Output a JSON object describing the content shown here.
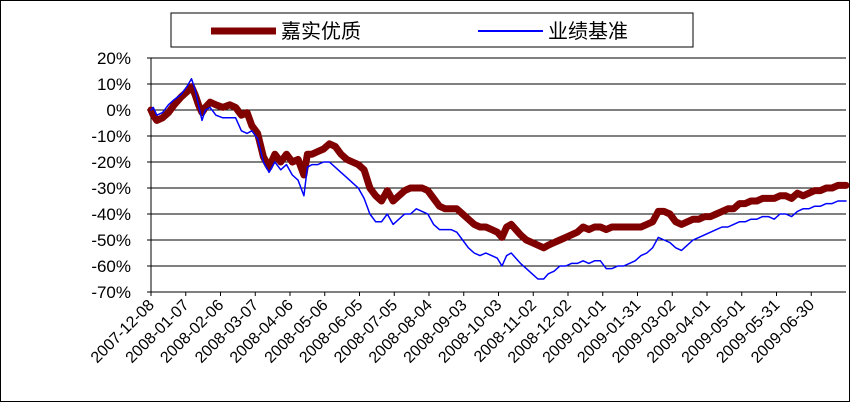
{
  "chart_data": {
    "type": "line",
    "title": "",
    "xlabel": "",
    "ylabel": "",
    "ylim": [
      -70,
      20
    ],
    "y_tick_labels": [
      "20%",
      "10%",
      "0%",
      "-10%",
      "-20%",
      "-30%",
      "-40%",
      "-50%",
      "-60%",
      "-70%"
    ],
    "x_tick_labels": [
      "2007-12-08",
      "2008-01-07",
      "2008-02-06",
      "2008-03-07",
      "2008-04-06",
      "2008-05-06",
      "2008-06-05",
      "2008-07-05",
      "2008-08-04",
      "2008-09-03",
      "2008-10-03",
      "2008-11-02",
      "2008-12-02",
      "2009-01-01",
      "2009-01-31",
      "2009-03-02",
      "2009-04-01",
      "2009-05-01",
      "2009-05-31",
      "2009-06-30"
    ],
    "x_range": [
      "2007-12-08",
      "2009-07-30"
    ],
    "grid": "horizontal",
    "legend_position": "top",
    "series": [
      {
        "name": "嘉实优质",
        "color": "#800000",
        "points": [
          [
            "2007-12-08",
            0
          ],
          [
            "2007-12-10",
            -2
          ],
          [
            "2007-12-13",
            -4
          ],
          [
            "2007-12-18",
            -3
          ],
          [
            "2007-12-23",
            -1
          ],
          [
            "2007-12-28",
            2
          ],
          [
            "2008-01-03",
            5
          ],
          [
            "2008-01-08",
            7
          ],
          [
            "2008-01-12",
            9
          ],
          [
            "2008-01-15",
            6
          ],
          [
            "2008-01-18",
            2
          ],
          [
            "2008-01-21",
            -1
          ],
          [
            "2008-01-24",
            1
          ],
          [
            "2008-01-28",
            3
          ],
          [
            "2008-02-02",
            2
          ],
          [
            "2008-02-08",
            1
          ],
          [
            "2008-02-14",
            2
          ],
          [
            "2008-02-19",
            1
          ],
          [
            "2008-02-24",
            -2
          ],
          [
            "2008-02-29",
            -1
          ],
          [
            "2008-03-04",
            -6
          ],
          [
            "2008-03-09",
            -9
          ],
          [
            "2008-03-14",
            -18
          ],
          [
            "2008-03-19",
            -22
          ],
          [
            "2008-03-24",
            -17
          ],
          [
            "2008-03-29",
            -20
          ],
          [
            "2008-04-03",
            -17
          ],
          [
            "2008-04-08",
            -20
          ],
          [
            "2008-04-13",
            -19
          ],
          [
            "2008-04-18",
            -25
          ],
          [
            "2008-04-21",
            -17
          ],
          [
            "2008-04-25",
            -17
          ],
          [
            "2008-04-30",
            -16
          ],
          [
            "2008-05-05",
            -15
          ],
          [
            "2008-05-10",
            -13
          ],
          [
            "2008-05-15",
            -14
          ],
          [
            "2008-05-20",
            -17
          ],
          [
            "2008-05-25",
            -19
          ],
          [
            "2008-05-30",
            -20
          ],
          [
            "2008-06-04",
            -21
          ],
          [
            "2008-06-09",
            -23
          ],
          [
            "2008-06-14",
            -30
          ],
          [
            "2008-06-19",
            -33
          ],
          [
            "2008-06-24",
            -35
          ],
          [
            "2008-06-29",
            -31
          ],
          [
            "2008-07-04",
            -35
          ],
          [
            "2008-07-09",
            -33
          ],
          [
            "2008-07-14",
            -31
          ],
          [
            "2008-07-19",
            -30
          ],
          [
            "2008-07-24",
            -30
          ],
          [
            "2008-07-29",
            -30
          ],
          [
            "2008-08-03",
            -31
          ],
          [
            "2008-08-08",
            -34
          ],
          [
            "2008-08-13",
            -37
          ],
          [
            "2008-08-18",
            -38
          ],
          [
            "2008-08-23",
            -38
          ],
          [
            "2008-08-28",
            -38
          ],
          [
            "2008-09-02",
            -40
          ],
          [
            "2008-09-07",
            -42
          ],
          [
            "2008-09-12",
            -44
          ],
          [
            "2008-09-17",
            -45
          ],
          [
            "2008-09-22",
            -45
          ],
          [
            "2008-09-27",
            -46
          ],
          [
            "2008-10-02",
            -47
          ],
          [
            "2008-10-06",
            -49
          ],
          [
            "2008-10-10",
            -45
          ],
          [
            "2008-10-14",
            -44
          ],
          [
            "2008-10-18",
            -46
          ],
          [
            "2008-10-22",
            -48
          ],
          [
            "2008-10-27",
            -50
          ],
          [
            "2008-11-01",
            -51
          ],
          [
            "2008-11-06",
            -52
          ],
          [
            "2008-11-11",
            -53
          ],
          [
            "2008-11-15",
            -52
          ],
          [
            "2008-11-20",
            -51
          ],
          [
            "2008-11-25",
            -50
          ],
          [
            "2008-11-30",
            -49
          ],
          [
            "2008-12-05",
            -48
          ],
          [
            "2008-12-10",
            -47
          ],
          [
            "2008-12-15",
            -45
          ],
          [
            "2008-12-20",
            -46
          ],
          [
            "2008-12-25",
            -45
          ],
          [
            "2008-12-30",
            -45
          ],
          [
            "2009-01-04",
            -46
          ],
          [
            "2009-01-09",
            -45
          ],
          [
            "2009-01-14",
            -45
          ],
          [
            "2009-01-19",
            -45
          ],
          [
            "2009-01-24",
            -45
          ],
          [
            "2009-01-29",
            -45
          ],
          [
            "2009-02-03",
            -45
          ],
          [
            "2009-02-08",
            -44
          ],
          [
            "2009-02-13",
            -43
          ],
          [
            "2009-02-18",
            -39
          ],
          [
            "2009-02-23",
            -39
          ],
          [
            "2009-02-28",
            -40
          ],
          [
            "2009-03-05",
            -43
          ],
          [
            "2009-03-10",
            -44
          ],
          [
            "2009-03-15",
            -43
          ],
          [
            "2009-03-20",
            -42
          ],
          [
            "2009-03-25",
            -42
          ],
          [
            "2009-03-30",
            -41
          ],
          [
            "2009-04-04",
            -41
          ],
          [
            "2009-04-09",
            -40
          ],
          [
            "2009-04-14",
            -39
          ],
          [
            "2009-04-19",
            -38
          ],
          [
            "2009-04-24",
            -38
          ],
          [
            "2009-04-29",
            -36
          ],
          [
            "2009-05-04",
            -36
          ],
          [
            "2009-05-09",
            -35
          ],
          [
            "2009-05-14",
            -35
          ],
          [
            "2009-05-19",
            -34
          ],
          [
            "2009-05-24",
            -34
          ],
          [
            "2009-05-29",
            -34
          ],
          [
            "2009-06-03",
            -33
          ],
          [
            "2009-06-08",
            -33
          ],
          [
            "2009-06-13",
            -34
          ],
          [
            "2009-06-18",
            -32
          ],
          [
            "2009-06-23",
            -33
          ],
          [
            "2009-06-28",
            -32
          ],
          [
            "2009-07-03",
            -31
          ],
          [
            "2009-07-08",
            -31
          ],
          [
            "2009-07-13",
            -30
          ],
          [
            "2009-07-18",
            -30
          ],
          [
            "2009-07-23",
            -29
          ],
          [
            "2009-07-30",
            -29
          ]
        ]
      },
      {
        "name": "业绩基准",
        "color": "#0000ff",
        "points": [
          [
            "2007-12-08",
            0
          ],
          [
            "2007-12-10",
            1
          ],
          [
            "2007-12-13",
            -2
          ],
          [
            "2007-12-18",
            -1
          ],
          [
            "2007-12-23",
            2
          ],
          [
            "2007-12-28",
            4
          ],
          [
            "2008-01-03",
            6
          ],
          [
            "2008-01-08",
            9
          ],
          [
            "2008-01-12",
            12
          ],
          [
            "2008-01-15",
            8
          ],
          [
            "2008-01-18",
            2
          ],
          [
            "2008-01-21",
            -4
          ],
          [
            "2008-01-24",
            0
          ],
          [
            "2008-01-28",
            1
          ],
          [
            "2008-02-02",
            -2
          ],
          [
            "2008-02-08",
            -3
          ],
          [
            "2008-02-14",
            -3
          ],
          [
            "2008-02-19",
            -3
          ],
          [
            "2008-02-24",
            -8
          ],
          [
            "2008-02-29",
            -9
          ],
          [
            "2008-03-04",
            -8
          ],
          [
            "2008-03-09",
            -11
          ],
          [
            "2008-03-14",
            -20
          ],
          [
            "2008-03-19",
            -24
          ],
          [
            "2008-03-24",
            -20
          ],
          [
            "2008-03-29",
            -23
          ],
          [
            "2008-04-03",
            -21
          ],
          [
            "2008-04-08",
            -25
          ],
          [
            "2008-04-13",
            -27
          ],
          [
            "2008-04-18",
            -33
          ],
          [
            "2008-04-21",
            -22
          ],
          [
            "2008-04-25",
            -21
          ],
          [
            "2008-04-30",
            -21
          ],
          [
            "2008-05-05",
            -20
          ],
          [
            "2008-05-10",
            -20
          ],
          [
            "2008-05-15",
            -22
          ],
          [
            "2008-05-20",
            -24
          ],
          [
            "2008-05-25",
            -26
          ],
          [
            "2008-05-30",
            -28
          ],
          [
            "2008-06-04",
            -30
          ],
          [
            "2008-06-09",
            -34
          ],
          [
            "2008-06-14",
            -40
          ],
          [
            "2008-06-19",
            -43
          ],
          [
            "2008-06-24",
            -43
          ],
          [
            "2008-06-29",
            -40
          ],
          [
            "2008-07-04",
            -44
          ],
          [
            "2008-07-09",
            -42
          ],
          [
            "2008-07-14",
            -40
          ],
          [
            "2008-07-19",
            -40
          ],
          [
            "2008-07-24",
            -38
          ],
          [
            "2008-07-29",
            -39
          ],
          [
            "2008-08-03",
            -40
          ],
          [
            "2008-08-08",
            -44
          ],
          [
            "2008-08-13",
            -46
          ],
          [
            "2008-08-18",
            -46
          ],
          [
            "2008-08-23",
            -46
          ],
          [
            "2008-08-28",
            -47
          ],
          [
            "2008-09-02",
            -50
          ],
          [
            "2008-09-07",
            -53
          ],
          [
            "2008-09-12",
            -55
          ],
          [
            "2008-09-17",
            -56
          ],
          [
            "2008-09-22",
            -55
          ],
          [
            "2008-09-27",
            -56
          ],
          [
            "2008-10-02",
            -57
          ],
          [
            "2008-10-06",
            -60
          ],
          [
            "2008-10-10",
            -56
          ],
          [
            "2008-10-14",
            -55
          ],
          [
            "2008-10-18",
            -57
          ],
          [
            "2008-10-22",
            -59
          ],
          [
            "2008-10-27",
            -61
          ],
          [
            "2008-11-01",
            -63
          ],
          [
            "2008-11-06",
            -65
          ],
          [
            "2008-11-11",
            -65
          ],
          [
            "2008-11-15",
            -63
          ],
          [
            "2008-11-20",
            -62
          ],
          [
            "2008-11-25",
            -60
          ],
          [
            "2008-11-30",
            -60
          ],
          [
            "2008-12-05",
            -59
          ],
          [
            "2008-12-10",
            -59
          ],
          [
            "2008-12-15",
            -58
          ],
          [
            "2008-12-20",
            -59
          ],
          [
            "2008-12-25",
            -58
          ],
          [
            "2008-12-30",
            -58
          ],
          [
            "2009-01-04",
            -61
          ],
          [
            "2009-01-09",
            -61
          ],
          [
            "2009-01-14",
            -60
          ],
          [
            "2009-01-19",
            -60
          ],
          [
            "2009-01-24",
            -59
          ],
          [
            "2009-01-29",
            -58
          ],
          [
            "2009-02-03",
            -56
          ],
          [
            "2009-02-08",
            -55
          ],
          [
            "2009-02-13",
            -53
          ],
          [
            "2009-02-18",
            -49
          ],
          [
            "2009-02-23",
            -50
          ],
          [
            "2009-02-28",
            -51
          ],
          [
            "2009-03-05",
            -53
          ],
          [
            "2009-03-10",
            -54
          ],
          [
            "2009-03-15",
            -52
          ],
          [
            "2009-03-20",
            -50
          ],
          [
            "2009-03-25",
            -49
          ],
          [
            "2009-03-30",
            -48
          ],
          [
            "2009-04-04",
            -47
          ],
          [
            "2009-04-09",
            -46
          ],
          [
            "2009-04-14",
            -45
          ],
          [
            "2009-04-19",
            -45
          ],
          [
            "2009-04-24",
            -44
          ],
          [
            "2009-04-29",
            -43
          ],
          [
            "2009-05-04",
            -43
          ],
          [
            "2009-05-09",
            -42
          ],
          [
            "2009-05-14",
            -42
          ],
          [
            "2009-05-19",
            -41
          ],
          [
            "2009-05-24",
            -41
          ],
          [
            "2009-05-29",
            -42
          ],
          [
            "2009-06-03",
            -40
          ],
          [
            "2009-06-08",
            -40
          ],
          [
            "2009-06-13",
            -41
          ],
          [
            "2009-06-18",
            -39
          ],
          [
            "2009-06-23",
            -38
          ],
          [
            "2009-06-28",
            -38
          ],
          [
            "2009-07-03",
            -37
          ],
          [
            "2009-07-08",
            -37
          ],
          [
            "2009-07-13",
            -36
          ],
          [
            "2009-07-18",
            -36
          ],
          [
            "2009-07-23",
            -35
          ],
          [
            "2009-07-30",
            -35
          ]
        ]
      }
    ]
  }
}
